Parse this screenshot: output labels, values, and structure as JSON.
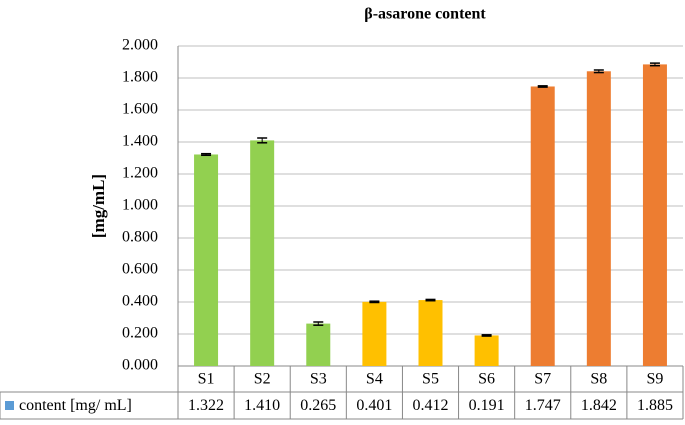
{
  "chart_data": {
    "type": "bar",
    "title": "β-asarone content",
    "y_label": "[mg/mL]",
    "categories": [
      "S1",
      "S2",
      "S3",
      "S4",
      "S5",
      "S6",
      "S7",
      "S8",
      "S9"
    ],
    "series": [
      {
        "name": "content [mg/ mL]",
        "color": "#5b9bd5",
        "point_colors": [
          "#92d050",
          "#92d050",
          "#92d050",
          "#ffc000",
          "#ffc000",
          "#ffc000",
          "#ed7d31",
          "#ed7d31",
          "#ed7d31"
        ],
        "values": [
          1.322,
          1.41,
          0.265,
          0.401,
          0.412,
          0.191,
          1.747,
          1.842,
          1.885
        ],
        "value_labels": [
          "1.322",
          "1.410",
          "0.265",
          "0.401",
          "0.412",
          "0.191",
          "1.747",
          "1.842",
          "1.885"
        ],
        "errors": [
          0.005,
          0.015,
          0.01,
          0.004,
          0.004,
          0.004,
          0.004,
          0.008,
          0.008
        ]
      }
    ],
    "ylim": [
      0,
      2
    ],
    "yticks": [
      {
        "value": 0,
        "label": "0.000"
      },
      {
        "value": 0.2,
        "label": "0.200"
      },
      {
        "value": 0.4,
        "label": "0.400"
      },
      {
        "value": 0.6,
        "label": "0.600"
      },
      {
        "value": 0.8,
        "label": "0.800"
      },
      {
        "value": 1,
        "label": "1.000"
      },
      {
        "value": 1.2,
        "label": "1.200"
      },
      {
        "value": 1.4,
        "label": "1.400"
      },
      {
        "value": 1.6,
        "label": "1.600"
      },
      {
        "value": 1.8,
        "label": "1.800"
      },
      {
        "value": 2,
        "label": "2.000"
      }
    ],
    "grid": true
  }
}
